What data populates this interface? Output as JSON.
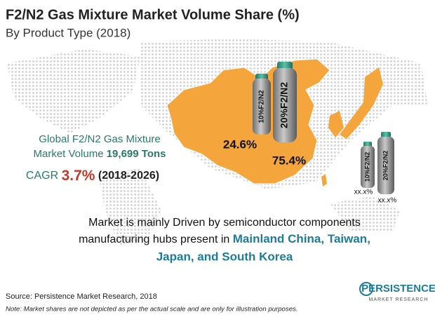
{
  "header": {
    "title": "F2/N2 Gas Mixture Market Volume Share (%)",
    "subtitle": "By Product Type (2018)"
  },
  "global": {
    "line1": "Global F2/N2 Gas Mixture",
    "line2_label": "Market Volume",
    "line2_value": "19,699 Tons",
    "cagr_label": "CAGR",
    "cagr_value": "3.7%",
    "cagr_period": "(2018-2026)"
  },
  "china": {
    "cylinders": [
      {
        "label": "10%F2/N2",
        "share": "24.6%"
      },
      {
        "label": "20%F2/N2",
        "share": "75.4%"
      }
    ]
  },
  "japan": {
    "cylinders": [
      {
        "label": "10%F2/N2",
        "share": "xx.x%"
      },
      {
        "label": "20%F2/N2",
        "share": "xx.x%"
      }
    ]
  },
  "market_text": {
    "line1": "Market is mainly Driven by semiconductor components",
    "line2": "manufacturing hubs present in",
    "highlight1": "Mainland China, Taiwan,",
    "highlight2": "Japan, and South Korea"
  },
  "footer": {
    "source": "Source: Persistence Market Research, 2018",
    "note": "Note: Market shares are not depicted as per the actual scale and are only for illustration purposes."
  },
  "logo": {
    "name": "PERSISTENCE",
    "tagline": "MARKET RESEARCH"
  }
}
